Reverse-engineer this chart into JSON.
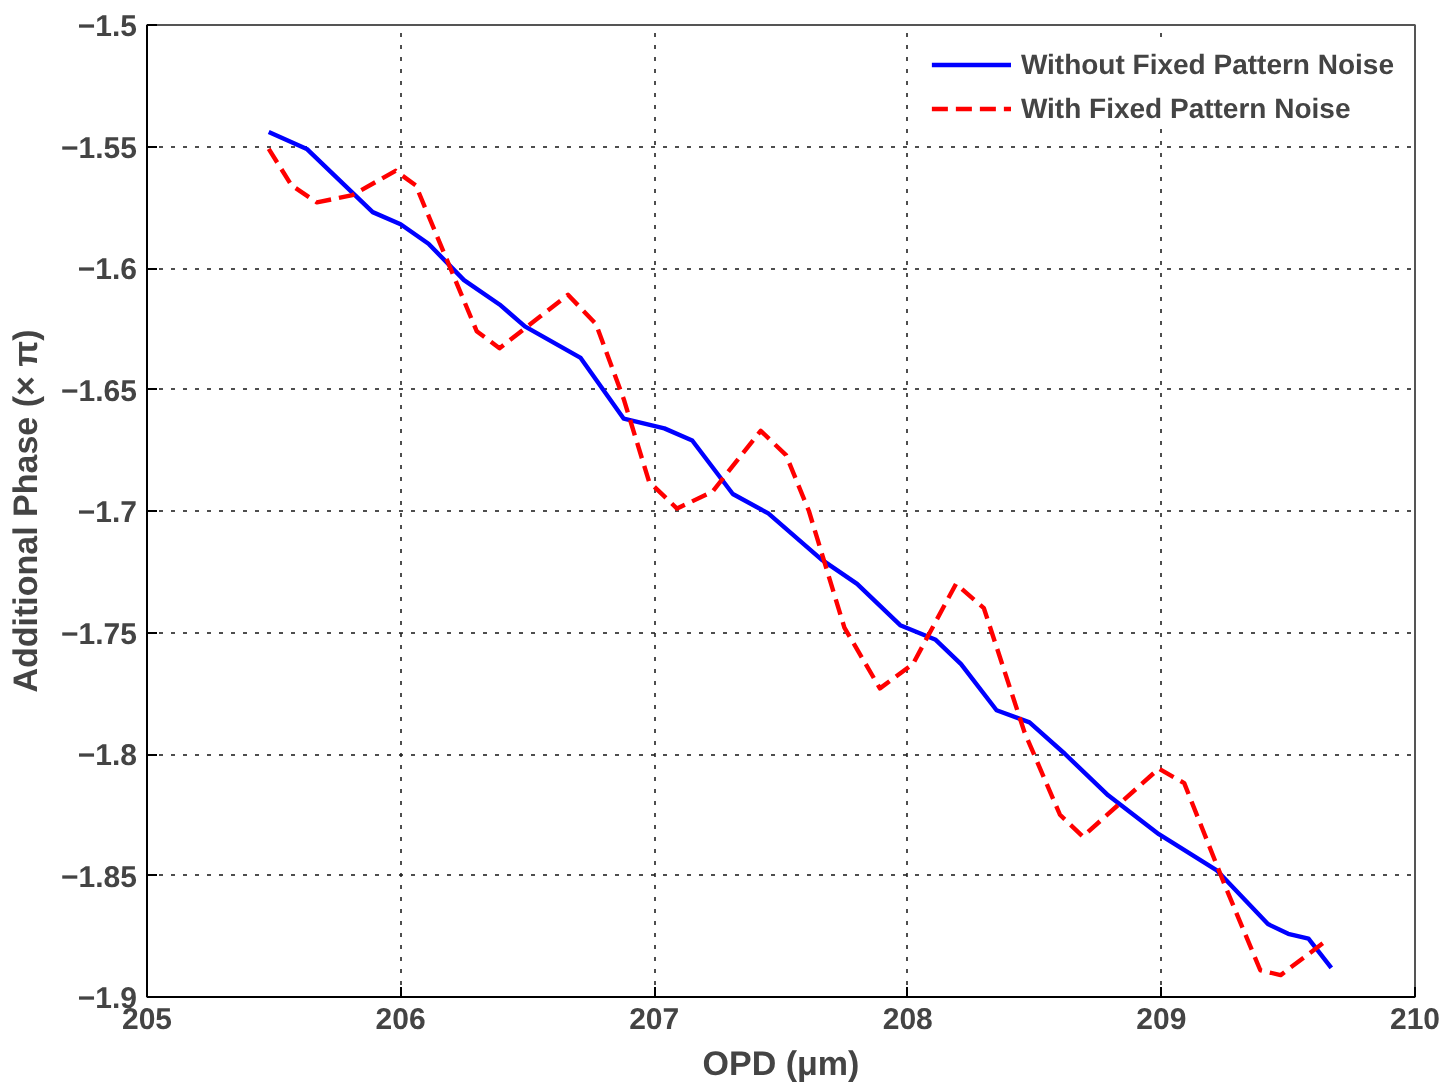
{
  "chart_data": {
    "type": "line",
    "xlabel": "OPD (μm)",
    "ylabel": "Additional Phase (× π)",
    "xlim": [
      205,
      210
    ],
    "xticks": [
      205,
      206,
      207,
      208,
      209,
      210
    ],
    "ylim": [
      -1.9,
      -1.5
    ],
    "yticks": [
      -1.9,
      -1.85,
      -1.8,
      -1.75,
      -1.7,
      -1.65,
      -1.6,
      -1.55,
      -1.5
    ],
    "grid": true,
    "legend": "top right",
    "series": [
      {
        "name": "Without Fixed Pattern Noise",
        "color": "#0000ff",
        "line_style": "solid",
        "x": [
          205.48,
          205.63,
          205.78,
          205.89,
          206.0,
          206.11,
          206.25,
          206.39,
          206.49,
          206.71,
          206.88,
          207.04,
          207.15,
          207.31,
          207.45,
          207.66,
          207.8,
          207.97,
          208.11,
          208.21,
          208.35,
          208.48,
          208.62,
          208.79,
          208.99,
          209.22,
          209.42,
          209.5,
          209.58,
          209.67
        ],
        "values": [
          -1.544,
          -1.551,
          -1.566,
          -1.577,
          -1.582,
          -1.59,
          -1.605,
          -1.615,
          -1.624,
          -1.637,
          -1.662,
          -1.666,
          -1.671,
          -1.693,
          -1.701,
          -1.72,
          -1.73,
          -1.747,
          -1.753,
          -1.763,
          -1.782,
          -1.787,
          -1.8,
          -1.817,
          -1.833,
          -1.848,
          -1.87,
          -1.874,
          -1.876,
          -1.888
        ]
      },
      {
        "name": "With Fixed Pattern Noise",
        "color": "#ff0000",
        "line_style": "dashed",
        "x": [
          205.48,
          205.57,
          205.67,
          205.81,
          205.98,
          206.06,
          206.14,
          206.22,
          206.3,
          206.39,
          206.55,
          206.66,
          206.77,
          206.88,
          206.98,
          207.09,
          207.23,
          207.42,
          207.52,
          207.61,
          207.75,
          207.89,
          208.02,
          208.19,
          208.3,
          208.46,
          208.6,
          208.69,
          208.84,
          208.99,
          209.09,
          209.25,
          209.39,
          209.47,
          209.66
        ],
        "values": [
          -1.551,
          -1.566,
          -1.573,
          -1.57,
          -1.56,
          -1.566,
          -1.586,
          -1.606,
          -1.626,
          -1.633,
          -1.62,
          -1.611,
          -1.623,
          -1.654,
          -1.688,
          -1.699,
          -1.692,
          -1.667,
          -1.677,
          -1.7,
          -1.748,
          -1.773,
          -1.763,
          -1.73,
          -1.74,
          -1.791,
          -1.825,
          -1.834,
          -1.82,
          -1.806,
          -1.812,
          -1.854,
          -1.889,
          -1.891,
          -1.876
        ]
      }
    ]
  }
}
